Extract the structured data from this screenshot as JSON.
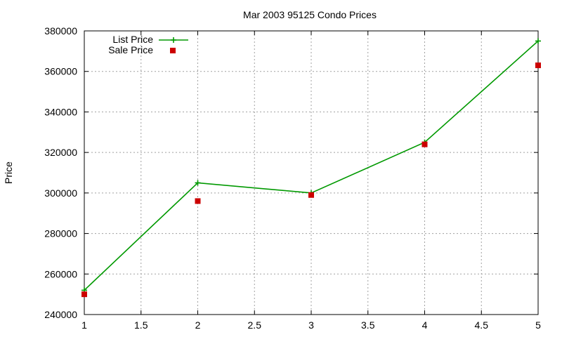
{
  "chart_data": {
    "type": "line",
    "title": "Mar 2003 95125 Condo Prices",
    "xlabel": "",
    "ylabel": "Price",
    "xlim": [
      1,
      5
    ],
    "ylim": [
      240000,
      380000
    ],
    "x_ticks": [
      "1",
      "1.5",
      "2",
      "2.5",
      "3",
      "3.5",
      "4",
      "4.5",
      "5"
    ],
    "y_ticks": [
      "240000",
      "260000",
      "280000",
      "300000",
      "320000",
      "340000",
      "360000",
      "380000"
    ],
    "grid": true,
    "legend_position": "top-left",
    "x": [
      1,
      2,
      3,
      4,
      5
    ],
    "series": [
      {
        "name": "List Price",
        "style": "line-with-plus-markers",
        "color": "#009900",
        "values": [
          252000,
          305000,
          300000,
          325000,
          375000
        ]
      },
      {
        "name": "Sale Price",
        "style": "square-markers",
        "color": "#cc0000",
        "values": [
          250000,
          296000,
          299000,
          324000,
          363000
        ]
      }
    ]
  }
}
